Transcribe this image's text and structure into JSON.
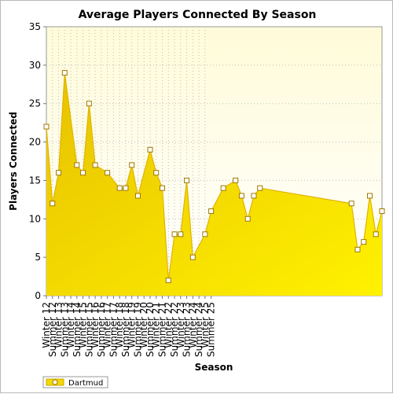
{
  "chart_data": {
    "type": "area",
    "title": "Average Players Connected By Season",
    "xlabel": "Season",
    "ylabel": "Players Connected",
    "ylim": [
      0,
      35
    ],
    "yticks": [
      0,
      5,
      10,
      15,
      20,
      25,
      30,
      35
    ],
    "grid": true,
    "legend_position": "bottom-left",
    "x_tick_labels": [
      "Winter 12",
      "Summer 12",
      "Winter 13",
      "Summer 13",
      "Winter 14",
      "Summer 14",
      "Winter 15",
      "Summer 15",
      "Winter 16",
      "Summer 16",
      "Winter 17",
      "Summer 17",
      "Winter 18",
      "Summer 18",
      "Winter 19",
      "Summer 19",
      "Winter 20",
      "Summer 20",
      "Winter 21",
      "Summer 21",
      "Winter 22",
      "Summer 22",
      "Winter 23",
      "Summer 23",
      "Winter 24",
      "Summer 24",
      "Winter 25",
      "Summer 25"
    ],
    "series": [
      {
        "name": "Dartmud",
        "color": "#f5d800",
        "points": [
          {
            "x": 0.0,
            "y": 22
          },
          {
            "x": 0.5,
            "y": 12
          },
          {
            "x": 1.0,
            "y": 16
          },
          {
            "x": 1.5,
            "y": 29
          },
          {
            "x": 2.5,
            "y": 17
          },
          {
            "x": 3.0,
            "y": 16
          },
          {
            "x": 3.5,
            "y": 25
          },
          {
            "x": 4.0,
            "y": 17
          },
          {
            "x": 5.0,
            "y": 16
          },
          {
            "x": 6.0,
            "y": 14
          },
          {
            "x": 6.5,
            "y": 14
          },
          {
            "x": 7.0,
            "y": 17
          },
          {
            "x": 7.5,
            "y": 13
          },
          {
            "x": 8.5,
            "y": 19
          },
          {
            "x": 9.0,
            "y": 16
          },
          {
            "x": 9.5,
            "y": 14
          },
          {
            "x": 10.0,
            "y": 2
          },
          {
            "x": 10.5,
            "y": 8
          },
          {
            "x": 11.0,
            "y": 8
          },
          {
            "x": 11.5,
            "y": 15
          },
          {
            "x": 12.0,
            "y": 5
          },
          {
            "x": 13.0,
            "y": 8
          },
          {
            "x": 13.5,
            "y": 11
          },
          {
            "x": 14.5,
            "y": 14
          },
          {
            "x": 15.5,
            "y": 15
          },
          {
            "x": 16.0,
            "y": 13
          },
          {
            "x": 16.5,
            "y": 10
          },
          {
            "x": 17.0,
            "y": 13
          },
          {
            "x": 17.5,
            "y": 14
          },
          {
            "x": 25.0,
            "y": 12
          },
          {
            "x": 25.5,
            "y": 6
          },
          {
            "x": 26.0,
            "y": 7
          },
          {
            "x": 26.5,
            "y": 13
          },
          {
            "x": 27.0,
            "y": 8
          },
          {
            "x": 27.5,
            "y": 11
          }
        ]
      }
    ]
  }
}
